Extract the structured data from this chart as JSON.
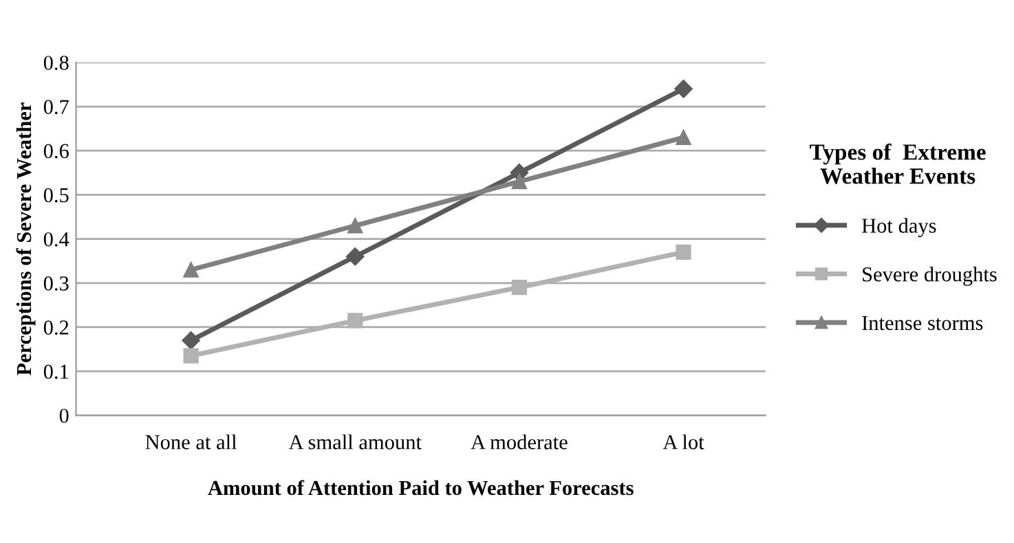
{
  "chart_data": {
    "type": "line",
    "xlabel": "Amount of Attention Paid to Weather Forecasts",
    "ylabel": "Perceptions of Severe Weather",
    "legend_title": "Types of  Extreme\nWeather Events",
    "categories": [
      "None at all",
      "A small amount",
      "A moderate",
      "A lot"
    ],
    "series": [
      {
        "name": "Hot days",
        "color": "#5a5a5a",
        "marker": "diamond",
        "values": [
          0.17,
          0.36,
          0.55,
          0.74
        ]
      },
      {
        "name": "Severe droughts",
        "color": "#b2b2b2",
        "marker": "square",
        "values": [
          0.135,
          0.215,
          0.29,
          0.37
        ]
      },
      {
        "name": "Intense storms",
        "color": "#808080",
        "marker": "triangle",
        "values": [
          0.33,
          0.43,
          0.53,
          0.63
        ]
      }
    ],
    "ylim": [
      0,
      0.8
    ],
    "yticks": [
      0,
      0.1,
      0.2,
      0.3,
      0.4,
      0.5,
      0.6,
      0.7,
      0.8
    ],
    "grid": "y",
    "legend": "right",
    "line_style": "solid"
  }
}
